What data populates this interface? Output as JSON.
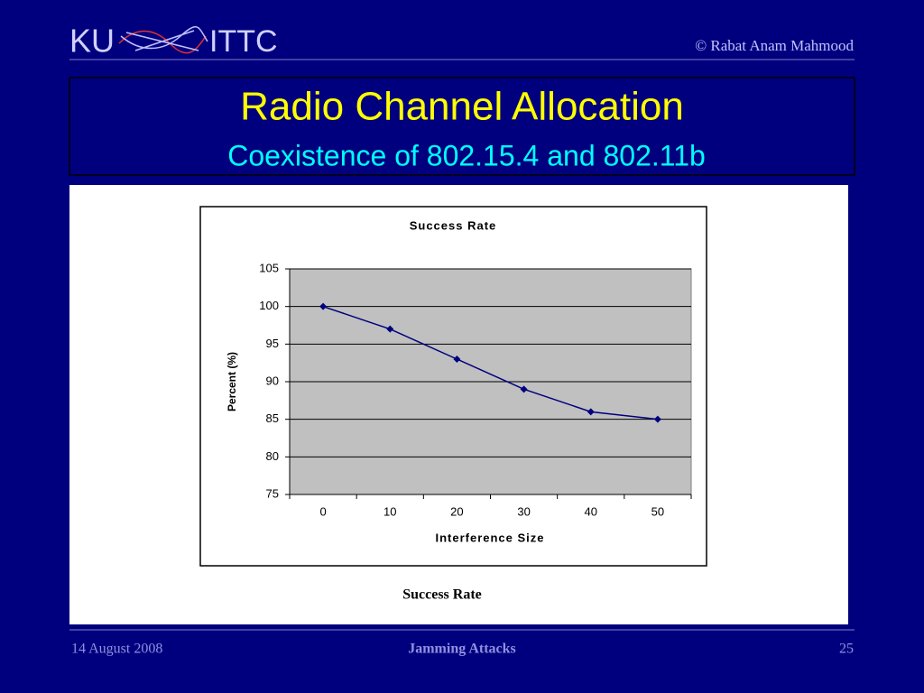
{
  "slide": {
    "logo_left": "KU",
    "logo_right": "ITTC",
    "copyright": "© Rabat Anam Mahmood",
    "title": "Radio Channel Allocation",
    "subtitle": "Coexistence of 802.15.4 and 802.11b",
    "caption": "Success Rate",
    "footer_date": "14 August 2008",
    "footer_center": "Jamming Attacks",
    "page_number": "25"
  },
  "chart_data": {
    "type": "line",
    "title": "Success Rate",
    "x_label": "Interference Size",
    "y_label": "Percent (%)",
    "categories": [
      "0",
      "10",
      "20",
      "30",
      "40",
      "50"
    ],
    "values": [
      100,
      97,
      93,
      89,
      86,
      85
    ],
    "color": "#00007f",
    "ylim": [
      75,
      105
    ],
    "yticks": [
      75,
      80,
      85,
      90,
      95,
      100,
      105
    ],
    "grid": true
  }
}
